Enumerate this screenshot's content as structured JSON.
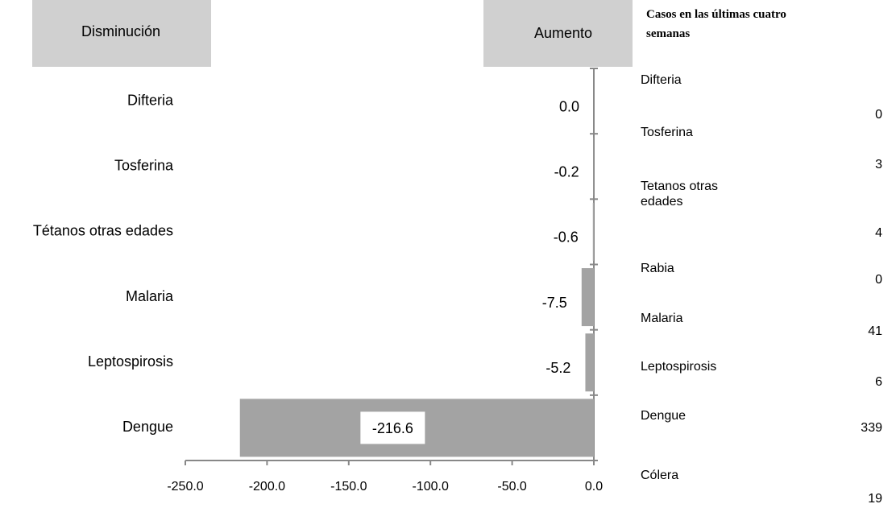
{
  "chart_data": {
    "type": "bar",
    "orientation": "horizontal",
    "header_left": "Disminución",
    "header_right": "Aumento",
    "categories": [
      "Difteria",
      "Tosferina",
      "Tétanos otras edades",
      "Malaria",
      "Leptospirosis",
      "Dengue"
    ],
    "values": [
      0,
      -0.2,
      -0.6,
      -7.5,
      -5.2,
      -216.6
    ],
    "value_labels": [
      "0.0",
      "-0.2",
      "-0.6",
      "-7.5",
      "-5.2",
      "-216.6"
    ],
    "color": "#a3a3a3",
    "xlim": [
      -250,
      0
    ],
    "xticks": [
      {
        "value": -250,
        "label": "-250.0"
      },
      {
        "value": -200,
        "label": "-200.0"
      },
      {
        "value": -150,
        "label": "-150.0"
      },
      {
        "value": -100,
        "label": "-100.0"
      },
      {
        "value": -50,
        "label": "-50.0"
      },
      {
        "value": 0,
        "label": "0.0"
      }
    ]
  },
  "table": {
    "header": "Casos en las últimas cuatro semanas",
    "rows": [
      [
        "Difteria",
        0
      ],
      [
        "Tosferina",
        3
      ],
      [
        "Tetanos otras edades",
        4
      ],
      [
        "Rabia",
        0
      ],
      [
        "Malaria",
        41
      ],
      [
        "Leptospirosis",
        6
      ],
      [
        "Dengue",
        339
      ],
      [
        "Cólera",
        19
      ]
    ]
  }
}
